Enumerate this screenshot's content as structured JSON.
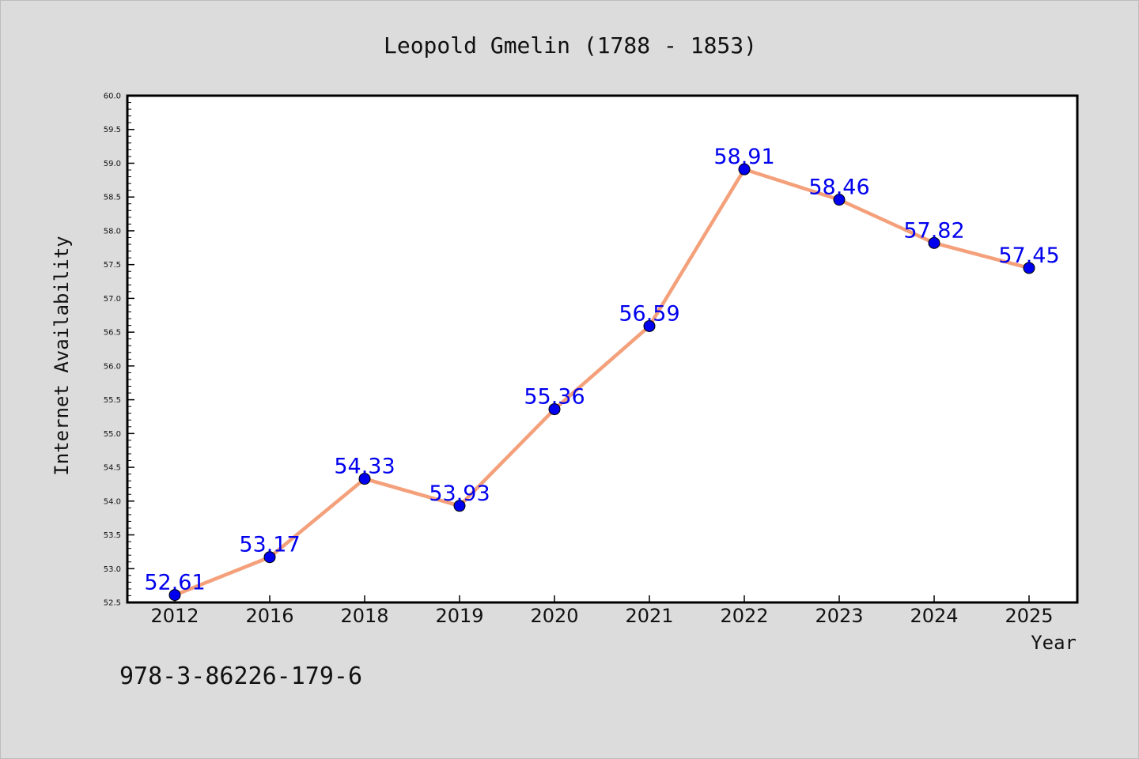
{
  "chart_data": {
    "type": "line",
    "title": "Leopold Gmelin (1788 - 1853)",
    "xlabel": "Year",
    "ylabel": "Internet Availability",
    "categories": [
      "2012",
      "2016",
      "2018",
      "2019",
      "2020",
      "2021",
      "2022",
      "2023",
      "2024",
      "2025"
    ],
    "series": [
      {
        "values": [
          52.61,
          53.17,
          54.33,
          53.93,
          55.36,
          56.59,
          58.91,
          58.46,
          57.82,
          57.45
        ]
      }
    ],
    "data_labels": [
      "52.61",
      "53.17",
      "54.33",
      "53.93",
      "55.36",
      "56.59",
      "58.91",
      "58.46",
      "57.82",
      "57.45"
    ],
    "ylim": [
      52.5,
      60.0
    ],
    "y_ticks": [
      "52.5",
      "53.0",
      "53.5",
      "54.0",
      "54.5",
      "55.0",
      "55.5",
      "56.0",
      "56.5",
      "57.0",
      "57.5",
      "58.0",
      "58.5",
      "59.0",
      "59.5",
      "60.0"
    ],
    "grid": false,
    "legend": "none",
    "colors": {
      "line": "#f4a07a",
      "marker": "#0000ee",
      "label": "#0000ee",
      "background": "#dcdcdc",
      "plot_background": "#ffffff"
    }
  },
  "footer": {
    "isbn": "978-3-86226-179-6"
  }
}
